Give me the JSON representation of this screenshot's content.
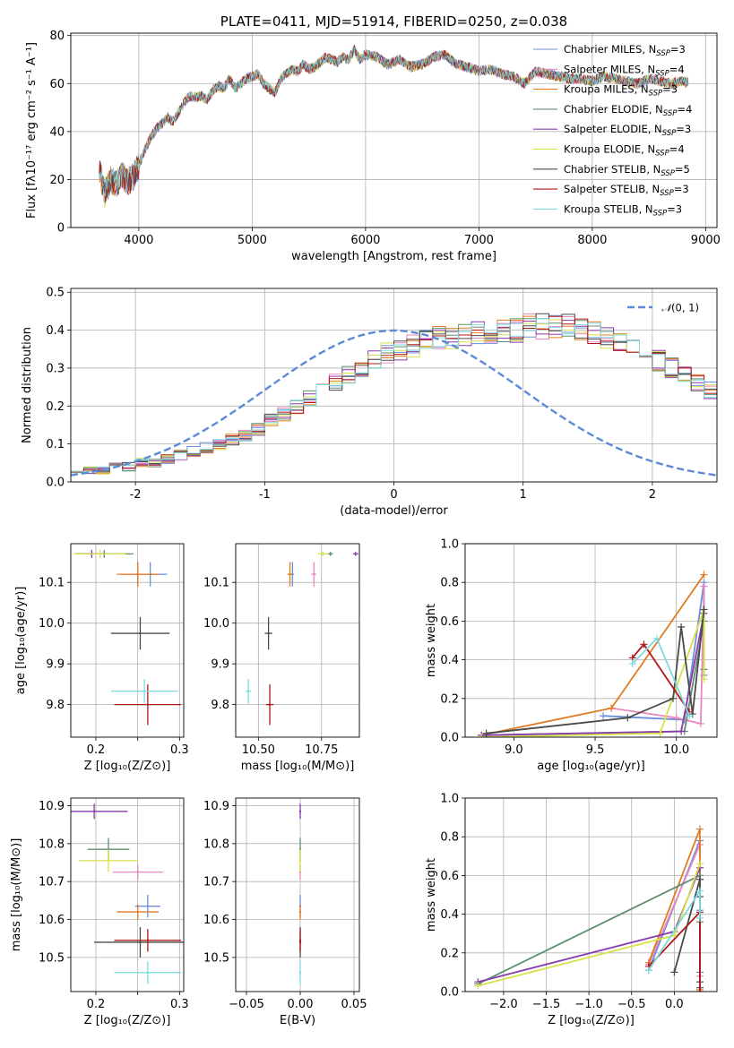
{
  "colors": {
    "Chabrier MILES": "#6a8fd8",
    "Salpeter MILES": "#ea86c2",
    "Kroupa MILES": "#e17b23",
    "Chabrier ELODIE": "#5f8f6f",
    "Salpeter ELODIE": "#8b3aad",
    "Kroupa ELODIE": "#d8e04a",
    "Chabrier STELIB": "#4a4a4a",
    "Salpeter STELIB": "#b01818",
    "Kroupa STELIB": "#7ed9e0"
  },
  "chart_data": [
    {
      "id": "spectrum",
      "type": "line",
      "title": "PLATE=0411, MJD=51914, FIBERID=0250, z=0.038",
      "xlabel": "wavelength [Angstrom, rest frame]",
      "ylabel": "Flux [fλ10⁻¹⁷ erg cm⁻² s⁻¹ A⁻¹]",
      "xlim": [
        3400,
        9100
      ],
      "ylim": [
        0,
        81
      ],
      "xticks": [
        4000,
        5000,
        6000,
        7000,
        8000,
        9000
      ],
      "yticks": [
        0,
        20,
        40,
        60,
        80
      ],
      "x": [
        3650,
        3700,
        3750,
        3800,
        3850,
        3900,
        3950,
        4000,
        4050,
        4100,
        4150,
        4200,
        4250,
        4300,
        4350,
        4400,
        4450,
        4500,
        4550,
        4600,
        4650,
        4700,
        4750,
        4800,
        4850,
        4900,
        4950,
        5000,
        5050,
        5100,
        5150,
        5200,
        5250,
        5300,
        5350,
        5400,
        5450,
        5500,
        5550,
        5600,
        5650,
        5700,
        5750,
        5800,
        5850,
        5900,
        5950,
        6000,
        6100,
        6200,
        6300,
        6400,
        6500,
        6600,
        6700,
        6800,
        6900,
        7000,
        7100,
        7200,
        7300,
        7400,
        7500,
        7600,
        7700,
        7800,
        7900,
        8000,
        8100,
        8200,
        8300,
        8400,
        8500,
        8600,
        8700,
        8800,
        8850
      ],
      "y": [
        24,
        14,
        20,
        18,
        22,
        19,
        21,
        26,
        32,
        37,
        41,
        43,
        46,
        44,
        48,
        52,
        55,
        54,
        55,
        53,
        57,
        59,
        58,
        62,
        58,
        60,
        62,
        63,
        64,
        60,
        58,
        56,
        62,
        64,
        66,
        65,
        68,
        66,
        67,
        69,
        71,
        70,
        69,
        71,
        70,
        74,
        70,
        72,
        71,
        68,
        70,
        67,
        68,
        71,
        72,
        68,
        67,
        65,
        66,
        64,
        63,
        60,
        65,
        64,
        63,
        62,
        62,
        61,
        63,
        62,
        61,
        60,
        62,
        61,
        60,
        61,
        60
      ],
      "series": [
        {
          "name": "Chabrier MILES, N_SSP=3",
          "style": "Chabrier MILES"
        },
        {
          "name": "Salpeter MILES, N_SSP=4",
          "style": "Salpeter MILES"
        },
        {
          "name": "Kroupa MILES, N_SSP=3",
          "style": "Kroupa MILES"
        },
        {
          "name": "Chabrier ELODIE, N_SSP=4",
          "style": "Chabrier ELODIE"
        },
        {
          "name": "Salpeter ELODIE, N_SSP=3",
          "style": "Salpeter ELODIE"
        },
        {
          "name": "Kroupa ELODIE, N_SSP=4",
          "style": "Kroupa ELODIE"
        },
        {
          "name": "Chabrier STELIB, N_SSP=5",
          "style": "Chabrier STELIB"
        },
        {
          "name": "Salpeter STELIB, N_SSP=3",
          "style": "Salpeter STELIB"
        },
        {
          "name": "Kroupa STELIB, N_SSP=3",
          "style": "Kroupa STELIB"
        }
      ],
      "legend_labels": [
        {
          "pre": "Chabrier MILES, N",
          "post": "=3"
        },
        {
          "pre": "Salpeter MILES, N",
          "post": "=4"
        },
        {
          "pre": "Kroupa MILES, N",
          "post": "=3"
        },
        {
          "pre": "Chabrier ELODIE, N",
          "post": "=4"
        },
        {
          "pre": "Salpeter ELODIE, N",
          "post": "=3"
        },
        {
          "pre": "Kroupa ELODIE, N",
          "post": "=4"
        },
        {
          "pre": "Chabrier STELIB, N",
          "post": "=5"
        },
        {
          "pre": "Salpeter STELIB, N",
          "post": "=3"
        },
        {
          "pre": "Kroupa STELIB, N",
          "post": "=3"
        }
      ],
      "legend_sub": "SSP",
      "legend": "top-right"
    },
    {
      "id": "residuals",
      "type": "histogram",
      "xlabel": "(data-model)/error",
      "ylabel": "Normed distribution",
      "xlim": [
        -2.5,
        2.5
      ],
      "ylim": [
        0,
        0.51
      ],
      "xticks": [
        -2,
        -1,
        0,
        1,
        2
      ],
      "yticks": [
        0.0,
        0.1,
        0.2,
        0.3,
        0.4,
        0.5
      ],
      "bin_width": 0.1,
      "reference_curve": {
        "name": "N(0,1)",
        "label_script": "𝒩",
        "label_rest": "(0, 1)",
        "mean": 0,
        "sigma": 1
      },
      "envelope": [
        0.03,
        0.03,
        0.03,
        0.04,
        0.04,
        0.05,
        0.05,
        0.06,
        0.07,
        0.08,
        0.09,
        0.1,
        0.11,
        0.12,
        0.14,
        0.16,
        0.18,
        0.2,
        0.22,
        0.24,
        0.26,
        0.28,
        0.3,
        0.32,
        0.34,
        0.35,
        0.36,
        0.37,
        0.38,
        0.38,
        0.39,
        0.39,
        0.39,
        0.4,
        0.4,
        0.41,
        0.41,
        0.41,
        0.41,
        0.4,
        0.39,
        0.38,
        0.37,
        0.36,
        0.34,
        0.32,
        0.3,
        0.28,
        0.26,
        0.24,
        0.22,
        0.2,
        0.18,
        0.16,
        0.14,
        0.13,
        0.12,
        0.11,
        0.1,
        0.09,
        0.08,
        0.07,
        0.07,
        0.06,
        0.06,
        0.05,
        0.05,
        0.05,
        0.04,
        0.04,
        0.04,
        0.04,
        0.04,
        0.03,
        0.03
      ],
      "legend": "top-right"
    },
    {
      "id": "age-vs-Z",
      "type": "scatter",
      "xlabel": "Z [log₁₀(Z/Z⊙)]",
      "ylabel": "age  [log₁₀(age/yr)]",
      "xlim": [
        0.17,
        0.305
      ],
      "ylim": [
        9.72,
        10.195
      ],
      "xticks": [
        0.2,
        0.25,
        0.3
      ],
      "xtick_labels": [
        "0.2",
        "",
        "0.3"
      ],
      "yticks": [
        9.8,
        9.9,
        10.0,
        10.1
      ],
      "points": [
        {
          "style": "Chabrier MILES",
          "x": 0.265,
          "y": 10.12,
          "xerr": 0.02,
          "yerr": 0.03
        },
        {
          "style": "Salpeter MILES",
          "x": 0.25,
          "y": 10.12,
          "xerr": 0.02,
          "yerr": 0.03
        },
        {
          "style": "Kroupa MILES",
          "x": 0.25,
          "y": 10.12,
          "xerr": 0.025,
          "yerr": 0.03
        },
        {
          "style": "Chabrier ELODIE",
          "x": 0.21,
          "y": 10.17,
          "xerr": 0.035,
          "yerr": 0.01
        },
        {
          "style": "Salpeter ELODIE",
          "x": 0.195,
          "y": 10.17,
          "xerr": 0.02,
          "yerr": 0.01
        },
        {
          "style": "Kroupa ELODIE",
          "x": 0.205,
          "y": 10.17,
          "xerr": 0.03,
          "yerr": 0.01
        },
        {
          "style": "Chabrier STELIB",
          "x": 0.253,
          "y": 9.975,
          "xerr": 0.035,
          "yerr": 0.04
        },
        {
          "style": "Salpeter STELIB",
          "x": 0.262,
          "y": 9.8,
          "xerr": 0.04,
          "yerr": 0.05
        },
        {
          "style": "Kroupa STELIB",
          "x": 0.258,
          "y": 9.833,
          "xerr": 0.04,
          "yerr": 0.03
        }
      ]
    },
    {
      "id": "age-vs-mass",
      "type": "scatter",
      "xlabel": "mass [log₁₀(M/M⊙)]",
      "ylabel": "",
      "xlim": [
        10.41,
        10.9
      ],
      "ylim": [
        9.72,
        10.195
      ],
      "xticks": [
        10.5,
        10.75
      ],
      "xtick_labels": [
        "10.50",
        "10.75"
      ],
      "yticks": [
        9.8,
        9.9,
        10.0,
        10.1
      ],
      "points": [
        {
          "style": "Chabrier MILES",
          "x": 10.635,
          "y": 10.12,
          "xerr": 0.005,
          "yerr": 0.03
        },
        {
          "style": "Salpeter MILES",
          "x": 10.72,
          "y": 10.12,
          "xerr": 0.01,
          "yerr": 0.03
        },
        {
          "style": "Kroupa MILES",
          "x": 10.625,
          "y": 10.12,
          "xerr": 0.01,
          "yerr": 0.03
        },
        {
          "style": "Chabrier ELODIE",
          "x": 10.785,
          "y": 10.17,
          "xerr": 0.01,
          "yerr": 0.005
        },
        {
          "style": "Salpeter ELODIE",
          "x": 10.885,
          "y": 10.17,
          "xerr": 0.01,
          "yerr": 0.005
        },
        {
          "style": "Kroupa ELODIE",
          "x": 10.755,
          "y": 10.17,
          "xerr": 0.02,
          "yerr": 0.005
        },
        {
          "style": "Chabrier STELIB",
          "x": 10.54,
          "y": 9.975,
          "xerr": 0.015,
          "yerr": 0.04
        },
        {
          "style": "Salpeter STELIB",
          "x": 10.545,
          "y": 9.8,
          "xerr": 0.015,
          "yerr": 0.05
        },
        {
          "style": "Kroupa STELIB",
          "x": 10.46,
          "y": 9.833,
          "xerr": 0.01,
          "yerr": 0.03
        }
      ]
    },
    {
      "id": "massweight-vs-age",
      "type": "line",
      "xlabel": "age  [log₁₀(age/yr)]",
      "ylabel": "mass weight",
      "xlim": [
        8.7,
        10.25
      ],
      "ylim": [
        0,
        1.0
      ],
      "xticks": [
        9.0,
        9.5,
        10.0
      ],
      "yticks": [
        0.0,
        0.2,
        0.4,
        0.6,
        0.8,
        1.0
      ],
      "series": [
        {
          "style": "Chabrier MILES",
          "x": [
            9.55,
            10.05,
            10.17,
            10.17
          ],
          "y": [
            0.11,
            0.09,
            0.8,
            0.32
          ]
        },
        {
          "style": "Salpeter MILES",
          "x": [
            9.6,
            10.0,
            10.15,
            10.17
          ],
          "y": [
            0.15,
            0.1,
            0.07,
            0.78
          ]
        },
        {
          "style": "Kroupa MILES",
          "x": [
            8.8,
            9.6,
            10.17
          ],
          "y": [
            0.01,
            0.15,
            0.84
          ]
        },
        {
          "style": "Chabrier ELODIE",
          "x": [
            8.8,
            10.05,
            10.17,
            10.17
          ],
          "y": [
            0.01,
            0.03,
            0.6,
            0.35
          ]
        },
        {
          "style": "Salpeter ELODIE",
          "x": [
            8.8,
            10.03,
            10.17
          ],
          "y": [
            0.01,
            0.03,
            0.64
          ]
        },
        {
          "style": "Kroupa ELODIE",
          "x": [
            8.8,
            9.9,
            10.17,
            10.17
          ],
          "y": [
            0.0,
            0.02,
            0.66,
            0.3
          ]
        },
        {
          "style": "Chabrier STELIB",
          "x": [
            8.83,
            9.7,
            9.98,
            10.03,
            10.1,
            10.17
          ],
          "y": [
            0.02,
            0.1,
            0.2,
            0.57,
            0.12,
            0.66
          ]
        },
        {
          "style": "Salpeter STELIB",
          "x": [
            9.73,
            9.8,
            10.08
          ],
          "y": [
            0.41,
            0.48,
            0.13
          ]
        },
        {
          "style": "Kroupa STELIB",
          "x": [
            9.73,
            9.88,
            10.08
          ],
          "y": [
            0.38,
            0.51,
            0.11
          ]
        }
      ]
    },
    {
      "id": "mass-vs-Z",
      "type": "scatter",
      "xlabel": "Z [log₁₀(Z/Z⊙)]",
      "ylabel": "mass [log₁₀(M/M⊙)]",
      "xlim": [
        0.17,
        0.305
      ],
      "ylim": [
        10.41,
        10.92
      ],
      "xticks": [
        0.2,
        0.25,
        0.3
      ],
      "xtick_labels": [
        "0.2",
        "",
        "0.3"
      ],
      "yticks": [
        10.5,
        10.6,
        10.7,
        10.8,
        10.9
      ],
      "points": [
        {
          "style": "Chabrier MILES",
          "x": 0.262,
          "y": 10.635,
          "xerr": 0.015,
          "yerr": 0.03
        },
        {
          "style": "Salpeter MILES",
          "x": 0.25,
          "y": 10.725,
          "xerr": 0.03,
          "yerr": 0.02
        },
        {
          "style": "Kroupa MILES",
          "x": 0.25,
          "y": 10.62,
          "xerr": 0.025,
          "yerr": 0.02
        },
        {
          "style": "Chabrier ELODIE",
          "x": 0.215,
          "y": 10.785,
          "xerr": 0.025,
          "yerr": 0.03
        },
        {
          "style": "Salpeter ELODIE",
          "x": 0.198,
          "y": 10.885,
          "xerr": 0.04,
          "yerr": 0.02
        },
        {
          "style": "Kroupa ELODIE",
          "x": 0.215,
          "y": 10.755,
          "xerr": 0.035,
          "yerr": 0.03
        },
        {
          "style": "Chabrier STELIB",
          "x": 0.253,
          "y": 10.54,
          "xerr": 0.055,
          "yerr": 0.04
        },
        {
          "style": "Salpeter STELIB",
          "x": 0.262,
          "y": 10.545,
          "xerr": 0.04,
          "yerr": 0.03
        },
        {
          "style": "Kroupa STELIB",
          "x": 0.262,
          "y": 10.46,
          "xerr": 0.04,
          "yerr": 0.03
        }
      ]
    },
    {
      "id": "mass-vs-EBV",
      "type": "scatter",
      "xlabel": "E(B-V)",
      "ylabel": "",
      "xlim": [
        -0.06,
        0.055
      ],
      "ylim": [
        10.41,
        10.92
      ],
      "xticks": [
        -0.05,
        0.0,
        0.05
      ],
      "xtick_labels": [
        "−0.05",
        "0.00",
        "0.05"
      ],
      "yticks": [
        10.5,
        10.6,
        10.7,
        10.8,
        10.9
      ],
      "points": [
        {
          "style": "Chabrier MILES",
          "x": 0,
          "y": 10.635,
          "xerr": 0,
          "yerr": 0.03
        },
        {
          "style": "Salpeter MILES",
          "x": 0,
          "y": 10.725,
          "xerr": 0,
          "yerr": 0.02
        },
        {
          "style": "Kroupa MILES",
          "x": 0,
          "y": 10.62,
          "xerr": 0,
          "yerr": 0.02
        },
        {
          "style": "Chabrier ELODIE",
          "x": 0,
          "y": 10.785,
          "xerr": 0,
          "yerr": 0.03
        },
        {
          "style": "Salpeter ELODIE",
          "x": 0,
          "y": 10.885,
          "xerr": 0,
          "yerr": 0.02
        },
        {
          "style": "Kroupa ELODIE",
          "x": 0,
          "y": 10.755,
          "xerr": 0,
          "yerr": 0.03
        },
        {
          "style": "Chabrier STELIB",
          "x": 0,
          "y": 10.54,
          "xerr": 0,
          "yerr": 0.04
        },
        {
          "style": "Salpeter STELIB",
          "x": 0,
          "y": 10.545,
          "xerr": 0,
          "yerr": 0.03
        },
        {
          "style": "Kroupa STELIB",
          "x": 0,
          "y": 10.46,
          "xerr": 0,
          "yerr": 0.03
        }
      ]
    },
    {
      "id": "massweight-vs-Z",
      "type": "line",
      "xlabel": "Z [log₁₀(Z/Z⊙)]",
      "ylabel": "mass weight",
      "xlim": [
        -2.45,
        0.5
      ],
      "ylim": [
        0,
        1.0
      ],
      "xticks": [
        -2.0,
        -1.5,
        -1.0,
        -0.5,
        0.0
      ],
      "yticks": [
        0.0,
        0.2,
        0.4,
        0.6,
        0.8,
        1.0
      ],
      "series": [
        {
          "style": "Chabrier MILES",
          "x": [
            -0.3,
            0.3,
            0.3,
            0.3
          ],
          "y": [
            0.11,
            0.78,
            0.42,
            0.1
          ]
        },
        {
          "style": "Salpeter MILES",
          "x": [
            -0.3,
            0.3,
            0.3
          ],
          "y": [
            0.14,
            0.76,
            0.08
          ]
        },
        {
          "style": "Kroupa MILES",
          "x": [
            -0.3,
            0.3,
            0.3
          ],
          "y": [
            0.15,
            0.84,
            0.01
          ]
        },
        {
          "style": "Chabrier ELODIE",
          "x": [
            -2.3,
            0.3,
            0.3
          ],
          "y": [
            0.04,
            0.6,
            0.36
          ]
        },
        {
          "style": "Salpeter ELODIE",
          "x": [
            -2.3,
            0.0,
            0.3
          ],
          "y": [
            0.05,
            0.31,
            0.64
          ]
        },
        {
          "style": "Kroupa ELODIE",
          "x": [
            -2.3,
            0.0,
            0.3
          ],
          "y": [
            0.03,
            0.29,
            0.66
          ]
        },
        {
          "style": "Chabrier STELIB",
          "x": [
            0.0,
            0.3,
            0.3,
            0.3,
            0.3
          ],
          "y": [
            0.1,
            0.58,
            0.49,
            0.05,
            0.02
          ]
        },
        {
          "style": "Salpeter STELIB",
          "x": [
            -0.3,
            0.3,
            0.3
          ],
          "y": [
            0.13,
            0.41,
            0.0
          ]
        },
        {
          "style": "Kroupa STELIB",
          "x": [
            -0.3,
            0.3,
            0.3
          ],
          "y": [
            0.11,
            0.52,
            0.38
          ]
        }
      ]
    }
  ]
}
